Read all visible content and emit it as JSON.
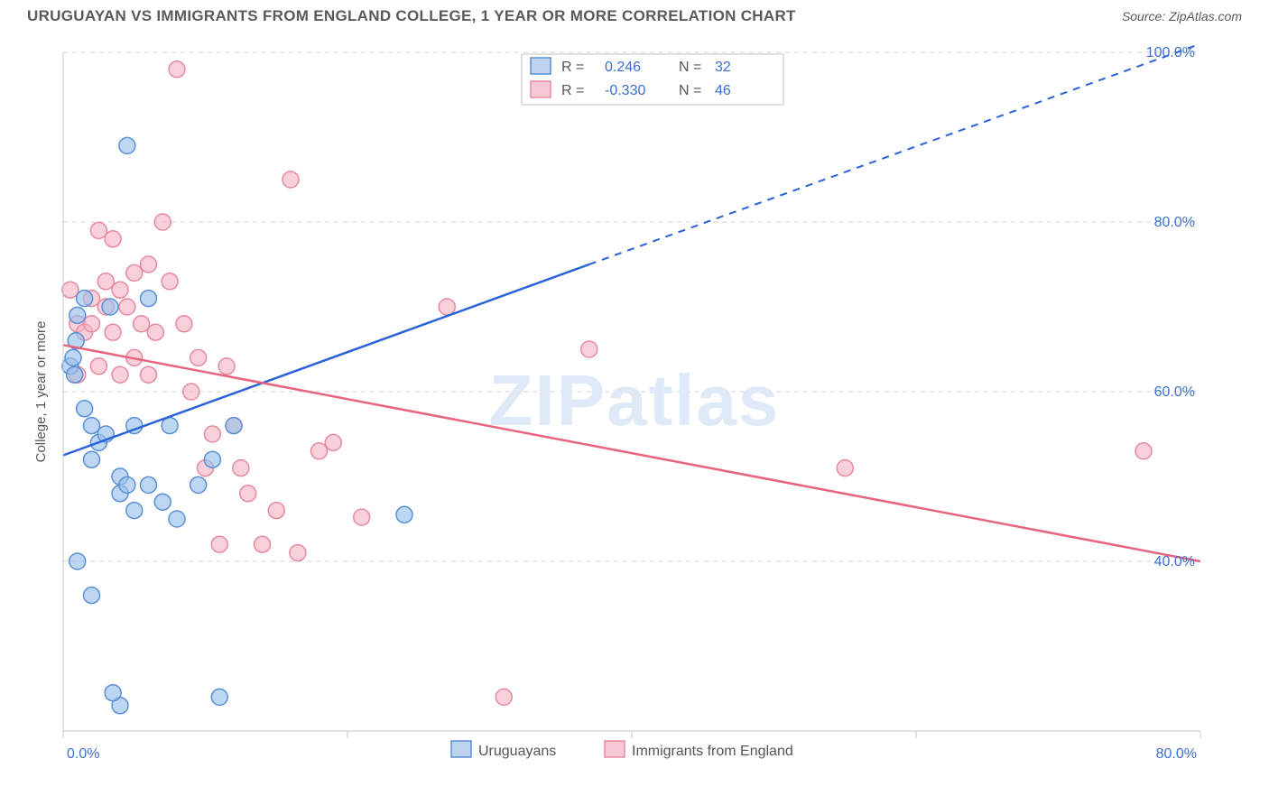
{
  "header": {
    "title": "URUGUAYAN VS IMMIGRANTS FROM ENGLAND COLLEGE, 1 YEAR OR MORE CORRELATION CHART",
    "source_label": "Source: ",
    "source_name": "ZipAtlas.com"
  },
  "watermark": "ZIPatlas",
  "chart": {
    "type": "scatter",
    "background_color": "#ffffff",
    "grid_color": "#d0d0d0",
    "ylabel": "College, 1 year or more",
    "xlim": [
      0,
      80
    ],
    "ylim": [
      20,
      100
    ],
    "xticks": [
      0,
      20,
      40,
      60,
      80
    ],
    "yticks": [
      40,
      60,
      80,
      100
    ],
    "xtick_labels": [
      "0.0%",
      "",
      "",
      "",
      "80.0%"
    ],
    "ytick_labels": [
      "40.0%",
      "60.0%",
      "80.0%",
      "100.0%"
    ],
    "grid_y": [
      40,
      60,
      80,
      100
    ],
    "marker_radius": 9,
    "series": {
      "blue": {
        "label": "Uruguayans",
        "fill": "#9ac0ea",
        "stroke": "#5a90d6",
        "points": [
          [
            0.5,
            63
          ],
          [
            0.7,
            64
          ],
          [
            0.8,
            62
          ],
          [
            0.9,
            66
          ],
          [
            1.0,
            69
          ],
          [
            1.5,
            71
          ],
          [
            1.5,
            58
          ],
          [
            2.0,
            56
          ],
          [
            2.0,
            52
          ],
          [
            2.5,
            54
          ],
          [
            3.0,
            55
          ],
          [
            3.3,
            70
          ],
          [
            4.0,
            48
          ],
          [
            4.0,
            50
          ],
          [
            4.5,
            49
          ],
          [
            4.5,
            89
          ],
          [
            5.0,
            46
          ],
          [
            5.0,
            56
          ],
          [
            6.0,
            49
          ],
          [
            6.0,
            71
          ],
          [
            7.0,
            47
          ],
          [
            7.5,
            56
          ],
          [
            8.0,
            45
          ],
          [
            9.5,
            49
          ],
          [
            10.5,
            52
          ],
          [
            12.0,
            56
          ],
          [
            1.0,
            40
          ],
          [
            2.0,
            36
          ],
          [
            4.0,
            23
          ],
          [
            11.0,
            24
          ],
          [
            24.0,
            45.5
          ],
          [
            3.5,
            24.5
          ]
        ],
        "trend": {
          "x1": 0,
          "y1": 52.5,
          "x2": 37,
          "y2": 75,
          "ext_x": 80,
          "ext_y": 101
        }
      },
      "pink": {
        "label": "Immigrants from England",
        "fill": "#f5b7c4",
        "stroke": "#e68aa0",
        "points": [
          [
            0.5,
            72
          ],
          [
            1.0,
            68
          ],
          [
            1.0,
            62
          ],
          [
            1.5,
            67
          ],
          [
            2.0,
            71
          ],
          [
            2.0,
            68
          ],
          [
            2.5,
            79
          ],
          [
            2.5,
            63
          ],
          [
            3.0,
            73
          ],
          [
            3.0,
            70
          ],
          [
            3.5,
            78
          ],
          [
            3.5,
            67
          ],
          [
            4.0,
            72
          ],
          [
            4.0,
            62
          ],
          [
            4.5,
            70
          ],
          [
            5.0,
            74
          ],
          [
            5.0,
            64
          ],
          [
            5.5,
            68
          ],
          [
            6.0,
            75
          ],
          [
            6.0,
            62
          ],
          [
            6.5,
            67
          ],
          [
            7.0,
            80
          ],
          [
            7.5,
            73
          ],
          [
            8.0,
            98
          ],
          [
            8.5,
            68
          ],
          [
            9.0,
            60
          ],
          [
            9.5,
            64
          ],
          [
            10.0,
            51
          ],
          [
            10.5,
            55
          ],
          [
            11.0,
            42
          ],
          [
            12.0,
            56
          ],
          [
            12.5,
            51
          ],
          [
            13.0,
            48
          ],
          [
            14.0,
            42
          ],
          [
            15.0,
            46
          ],
          [
            16.0,
            85
          ],
          [
            16.5,
            41
          ],
          [
            18.0,
            53
          ],
          [
            19.0,
            54
          ],
          [
            21.0,
            45.2
          ],
          [
            27.0,
            70
          ],
          [
            37.0,
            65
          ],
          [
            55.0,
            51
          ],
          [
            76.0,
            53
          ],
          [
            31.0,
            24
          ],
          [
            11.5,
            63
          ]
        ],
        "trend": {
          "x1": 0,
          "y1": 65.5,
          "x2": 80,
          "y2": 40
        }
      }
    }
  },
  "top_legend": {
    "series1": {
      "r_label": "R =",
      "r_value": "0.246",
      "n_label": "N =",
      "n_value": "32"
    },
    "series2": {
      "r_label": "R =",
      "r_value": "-0.330",
      "n_label": "N =",
      "n_value": "46"
    }
  },
  "bottom_legend": {
    "series1": "Uruguayans",
    "series2": "Immigrants from England"
  }
}
